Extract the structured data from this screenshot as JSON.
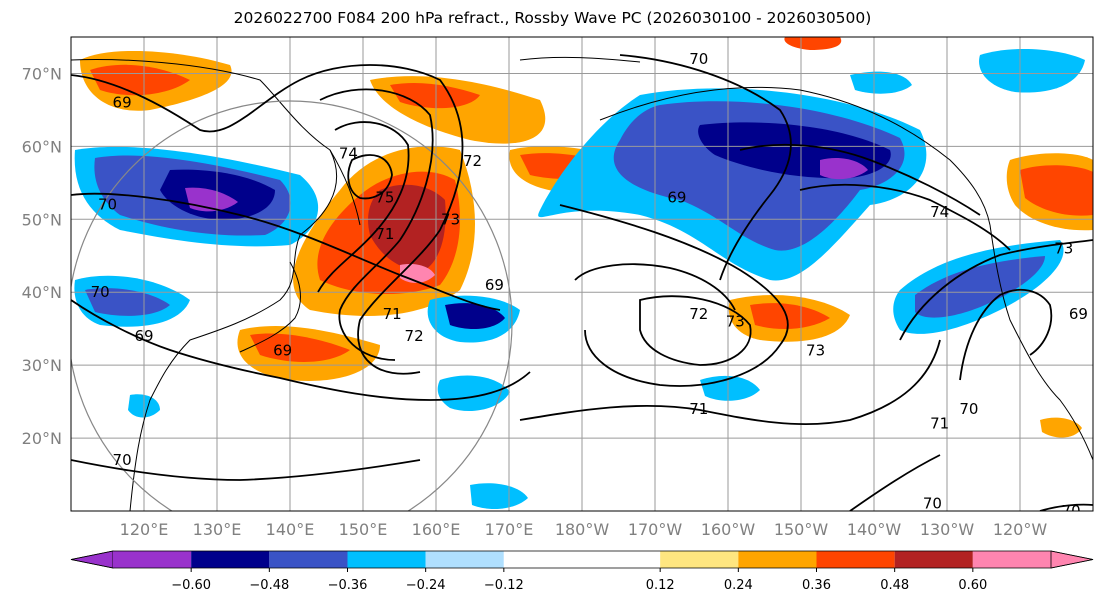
{
  "title": "2026022700 F084 200 hPa refract., Rossby Wave PC (2026030100 - 2026030500)",
  "map": {
    "projection": "cylindrical",
    "lon_range": [
      110,
      250
    ],
    "lat_range": [
      10,
      75
    ],
    "lat_ticks": [
      {
        "value": 20,
        "label": "20°N"
      },
      {
        "value": 30,
        "label": "30°N"
      },
      {
        "value": 40,
        "label": "40°N"
      },
      {
        "value": 50,
        "label": "50°N"
      },
      {
        "value": 60,
        "label": "60°N"
      },
      {
        "value": 70,
        "label": "70°N"
      }
    ],
    "lon_ticks": [
      {
        "value": 120,
        "label": "120°E"
      },
      {
        "value": 130,
        "label": "130°E"
      },
      {
        "value": 140,
        "label": "140°E"
      },
      {
        "value": 150,
        "label": "150°E"
      },
      {
        "value": 160,
        "label": "160°E"
      },
      {
        "value": 170,
        "label": "170°E"
      },
      {
        "value": 180,
        "label": "180°W"
      },
      {
        "value": 190,
        "label": "170°W"
      },
      {
        "value": 200,
        "label": "160°W"
      },
      {
        "value": 210,
        "label": "150°W"
      },
      {
        "value": 220,
        "label": "140°W"
      },
      {
        "value": 230,
        "label": "130°W"
      },
      {
        "value": 240,
        "label": "120°W"
      }
    ],
    "contour_labels": [
      {
        "text": "69",
        "lon": 117,
        "lat": 66
      },
      {
        "text": "70",
        "lon": 115,
        "lat": 52
      },
      {
        "text": "70",
        "lon": 114,
        "lat": 40
      },
      {
        "text": "69",
        "lon": 120,
        "lat": 34
      },
      {
        "text": "74",
        "lon": 148,
        "lat": 59
      },
      {
        "text": "75",
        "lon": 153,
        "lat": 53
      },
      {
        "text": "72",
        "lon": 165,
        "lat": 58
      },
      {
        "text": "73",
        "lon": 162,
        "lat": 50
      },
      {
        "text": "71",
        "lon": 153,
        "lat": 48
      },
      {
        "text": "69",
        "lon": 168,
        "lat": 41
      },
      {
        "text": "71",
        "lon": 154,
        "lat": 37
      },
      {
        "text": "72",
        "lon": 157,
        "lat": 34
      },
      {
        "text": "69",
        "lon": 139,
        "lat": 32
      },
      {
        "text": "70",
        "lon": 196,
        "lat": 72
      },
      {
        "text": "69",
        "lon": 193,
        "lat": 53
      },
      {
        "text": "74",
        "lon": 229,
        "lat": 51
      },
      {
        "text": "72",
        "lon": 196,
        "lat": 37
      },
      {
        "text": "73",
        "lon": 201,
        "lat": 36
      },
      {
        "text": "73",
        "lon": 212,
        "lat": 32
      },
      {
        "text": "71",
        "lon": 196,
        "lat": 24
      },
      {
        "text": "71",
        "lon": 229,
        "lat": 22
      },
      {
        "text": "70",
        "lon": 233,
        "lat": 24
      },
      {
        "text": "73",
        "lon": 246,
        "lat": 46
      },
      {
        "text": "69",
        "lon": 248,
        "lat": 37
      },
      {
        "text": "70",
        "lon": 117,
        "lat": 17
      },
      {
        "text": "70",
        "lon": 228,
        "lat": 11
      },
      {
        "text": "70",
        "lon": 247,
        "lat": 10
      }
    ]
  },
  "colorbar": {
    "bins": [
      {
        "from": null,
        "to": -0.72,
        "color": "#9932cc"
      },
      {
        "from": -0.72,
        "to": -0.6,
        "color": "#9932cc"
      },
      {
        "from": -0.6,
        "to": -0.48,
        "color": "#00008b"
      },
      {
        "from": -0.48,
        "to": -0.36,
        "color": "#3a53c6"
      },
      {
        "from": -0.36,
        "to": -0.24,
        "color": "#00bfff"
      },
      {
        "from": -0.24,
        "to": -0.12,
        "color": "#b0e0ff"
      },
      {
        "from": -0.12,
        "to": 0.12,
        "color": "#ffffff"
      },
      {
        "from": 0.12,
        "to": 0.24,
        "color": "#ffe680"
      },
      {
        "from": 0.24,
        "to": 0.36,
        "color": "#ffa500"
      },
      {
        "from": 0.36,
        "to": 0.48,
        "color": "#ff4500"
      },
      {
        "from": 0.48,
        "to": 0.6,
        "color": "#b22222"
      },
      {
        "from": 0.6,
        "to": 0.72,
        "color": "#ff85b0"
      }
    ],
    "tick_labels": [
      "−0.60",
      "−0.48",
      "−0.36",
      "−0.24",
      "−0.12",
      "0.12",
      "0.24",
      "0.36",
      "0.48",
      "0.60"
    ]
  }
}
